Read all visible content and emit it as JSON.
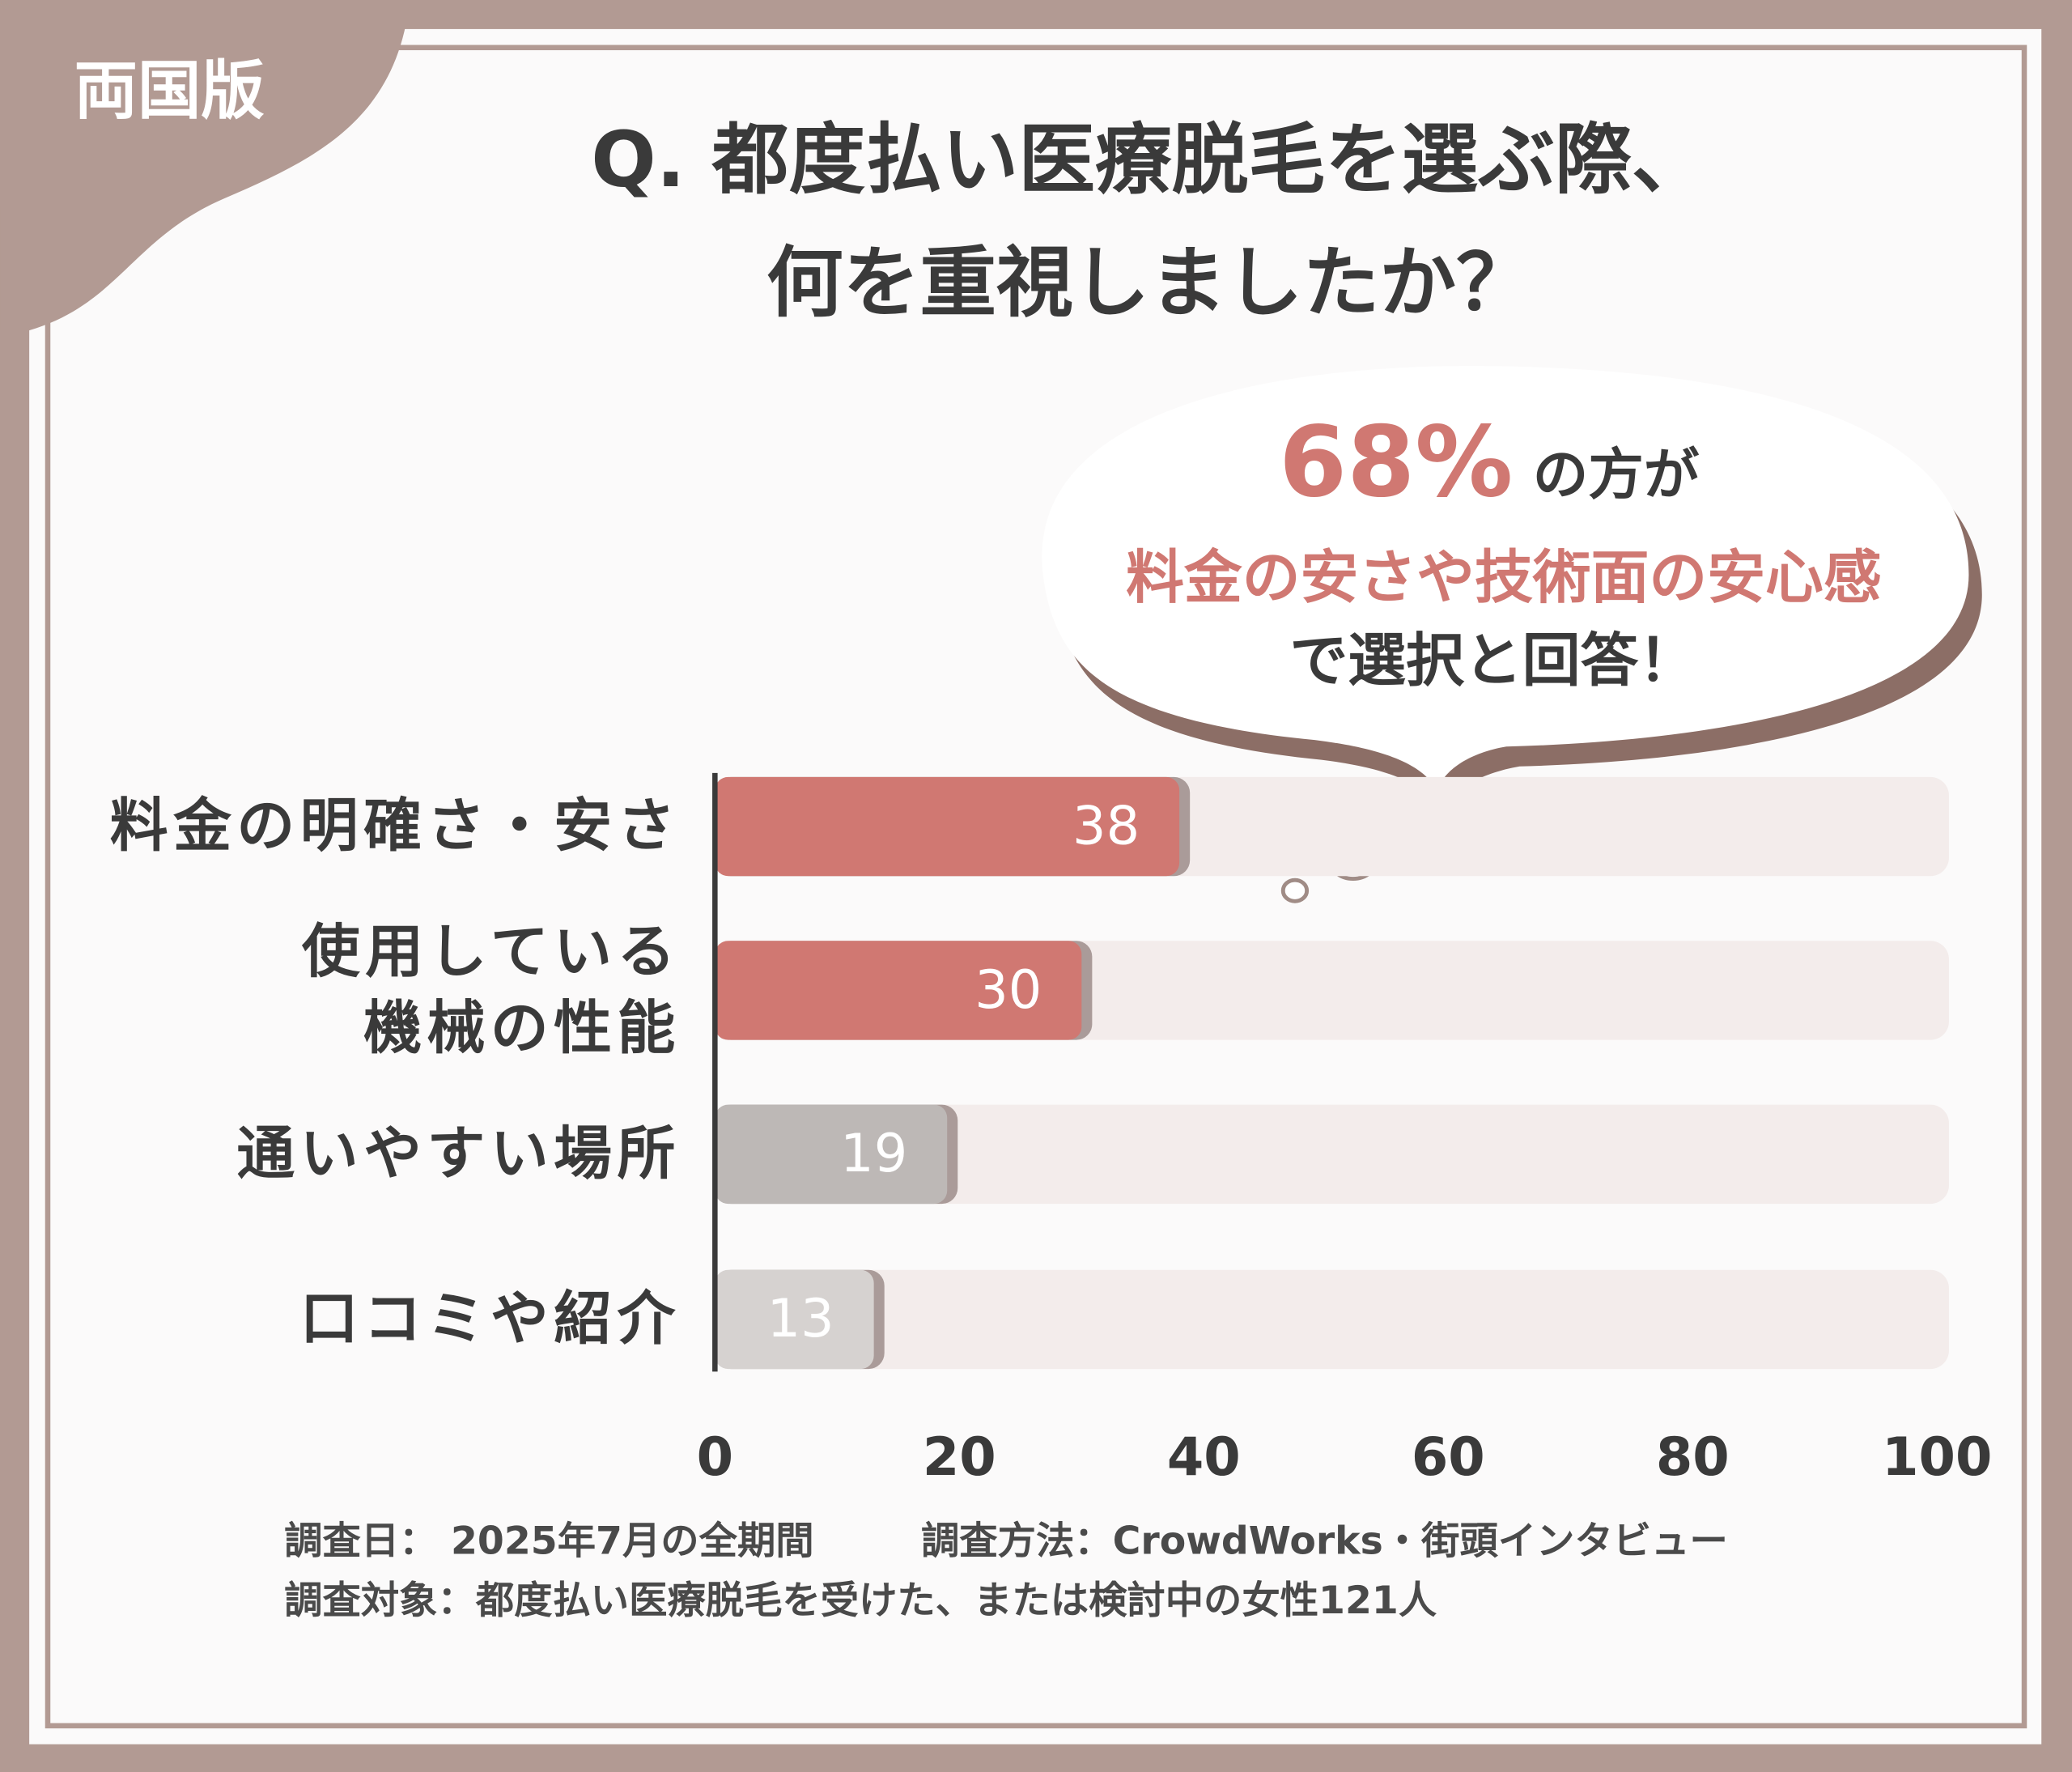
{
  "badge": "両国版",
  "chart_data": {
    "type": "hbar",
    "title": "Q. 都度払い医療脱毛を選ぶ際、\n何を重視しましたか？",
    "callout": {
      "highlight": "68%",
      "line1": "の方が",
      "line2": "料金の安さや技術面の安心感",
      "line3": "で選択と回答！"
    },
    "categories": [
      "料金の明確さ・安さ",
      "使用している\n機械の性能",
      "通いやすい場所",
      "口コミや紹介"
    ],
    "values": [
      38,
      30,
      19,
      13
    ],
    "colors": [
      "#d07872",
      "#d07872",
      "#bdb8b6",
      "#d6d2d0"
    ],
    "track_color": "#f3eceb",
    "xlim": [
      0,
      100
    ],
    "xticks": [
      0,
      20,
      40,
      60,
      80,
      100
    ],
    "notes": [
      "調査日： 2025年7月の全期間",
      "調査方法：CrowdWorks・街頭インタビュー",
      "調査対象：都度払い医療脱毛を受けた、または検討中の女性121人"
    ]
  }
}
